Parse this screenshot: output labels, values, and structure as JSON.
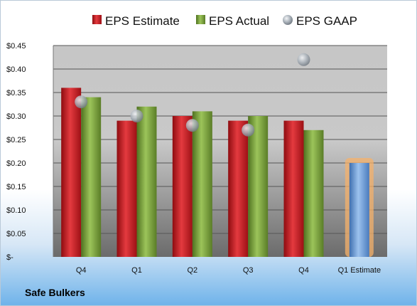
{
  "company": "Safe Bulkers",
  "colors": {
    "estimate": "#c8171e",
    "actual": "#7ca53a",
    "gaap": "#9aa3ad",
    "next_estimate": "#6a9bd8",
    "next_estimate_glow": "#f6b26b"
  },
  "chart_data": {
    "type": "bar",
    "categories": [
      "Q4",
      "Q1",
      "Q2",
      "Q3",
      "Q4",
      "Q1 Estimate"
    ],
    "series": [
      {
        "name": "EPS Estimate",
        "values": [
          0.36,
          0.29,
          0.3,
          0.29,
          0.29,
          null
        ]
      },
      {
        "name": "EPS Actual",
        "values": [
          0.34,
          0.32,
          0.31,
          0.3,
          0.27,
          0.2
        ]
      },
      {
        "name": "EPS GAAP",
        "values": [
          0.33,
          0.3,
          0.28,
          0.27,
          0.42,
          null
        ],
        "marker": "circle"
      }
    ],
    "ylim": [
      0,
      0.45
    ],
    "yticks": [
      0,
      0.05,
      0.1,
      0.15,
      0.2,
      0.25,
      0.3,
      0.35,
      0.4,
      0.45
    ],
    "ytick_labels": [
      "$-",
      "$0.05",
      "$0.10",
      "$0.15",
      "$0.20",
      "$0.25",
      "$0.30",
      "$0.35",
      "$0.40",
      "$0.45"
    ],
    "grid": true,
    "legend": "top"
  }
}
